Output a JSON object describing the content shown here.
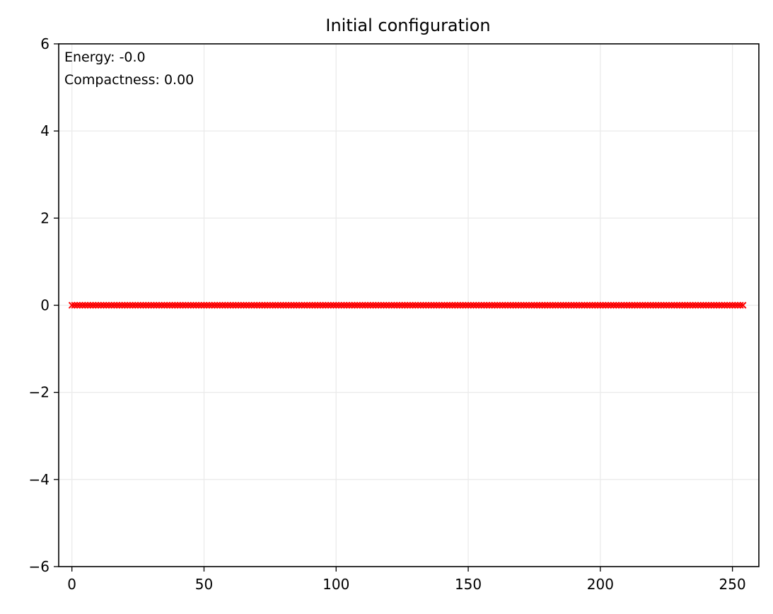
{
  "chart_data": {
    "type": "scatter",
    "title": "Initial configuration",
    "xlabel": "",
    "ylabel": "",
    "xlim": [
      -5,
      260
    ],
    "ylim": [
      -6,
      6
    ],
    "xticks": [
      0,
      50,
      100,
      150,
      200,
      250
    ],
    "xtick_labels": [
      "0",
      "50",
      "100",
      "150",
      "200",
      "250"
    ],
    "yticks": [
      -6,
      -4,
      -2,
      0,
      2,
      4,
      6
    ],
    "ytick_labels": [
      "−6",
      "−4",
      "−2",
      "0",
      "2",
      "4",
      "6"
    ],
    "grid": true,
    "series": [
      {
        "x_start": 0,
        "x_end": 254,
        "x_step": 1,
        "y": 0,
        "marker": "x",
        "color": "#ff0000",
        "line_color": "#3b75af"
      }
    ],
    "annotations": [
      "Energy: -0.0",
      "Compactness: 0.00"
    ]
  },
  "colors": {
    "marker": "#ff0000",
    "line": "#3b75af",
    "grid": "#ebebeb",
    "axes": "#000000"
  }
}
